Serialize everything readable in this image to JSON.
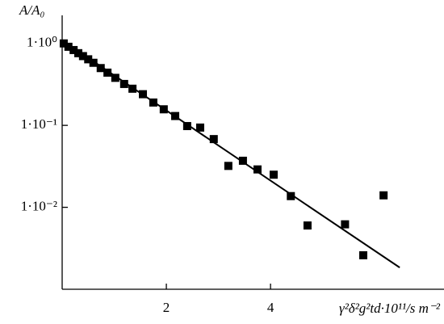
{
  "chart_data": {
    "type": "scatter",
    "log_y": true,
    "y_label": "A/A₀",
    "x_label": "γ²δ²g²td·10¹¹/s m⁻²",
    "xlim": [
      0,
      7.33
    ],
    "ylim": [
      0.001,
      2.2
    ],
    "xticks": [
      2,
      4
    ],
    "yticks": [
      {
        "value": 1,
        "label": "1·10⁰"
      },
      {
        "value": 0.1,
        "label": "1·10⁻¹"
      },
      {
        "value": 0.01,
        "label": "1·10⁻²"
      }
    ],
    "series": [
      {
        "kind": "points",
        "color": "#000000",
        "x": [
          0.03,
          0.12,
          0.22,
          0.31,
          0.4,
          0.5,
          0.6,
          0.74,
          0.87,
          1.02,
          1.19,
          1.35,
          1.55,
          1.75,
          1.95,
          2.17,
          2.4,
          2.65,
          2.91,
          3.19,
          3.47,
          3.75,
          4.06,
          4.39,
          4.71,
          5.43,
          5.78,
          6.17
        ],
        "values": [
          1.0,
          0.91,
          0.83,
          0.76,
          0.7,
          0.64,
          0.58,
          0.5,
          0.44,
          0.38,
          0.32,
          0.28,
          0.24,
          0.19,
          0.157,
          0.13,
          0.098,
          0.094,
          0.068,
          0.032,
          0.037,
          0.029,
          0.025,
          0.0137,
          0.006,
          0.0062,
          0.0026,
          0.014
        ]
      },
      {
        "kind": "line",
        "color": "#000000",
        "x": [
          0,
          6.48
        ],
        "values": [
          1.09,
          0.00184
        ]
      }
    ]
  }
}
